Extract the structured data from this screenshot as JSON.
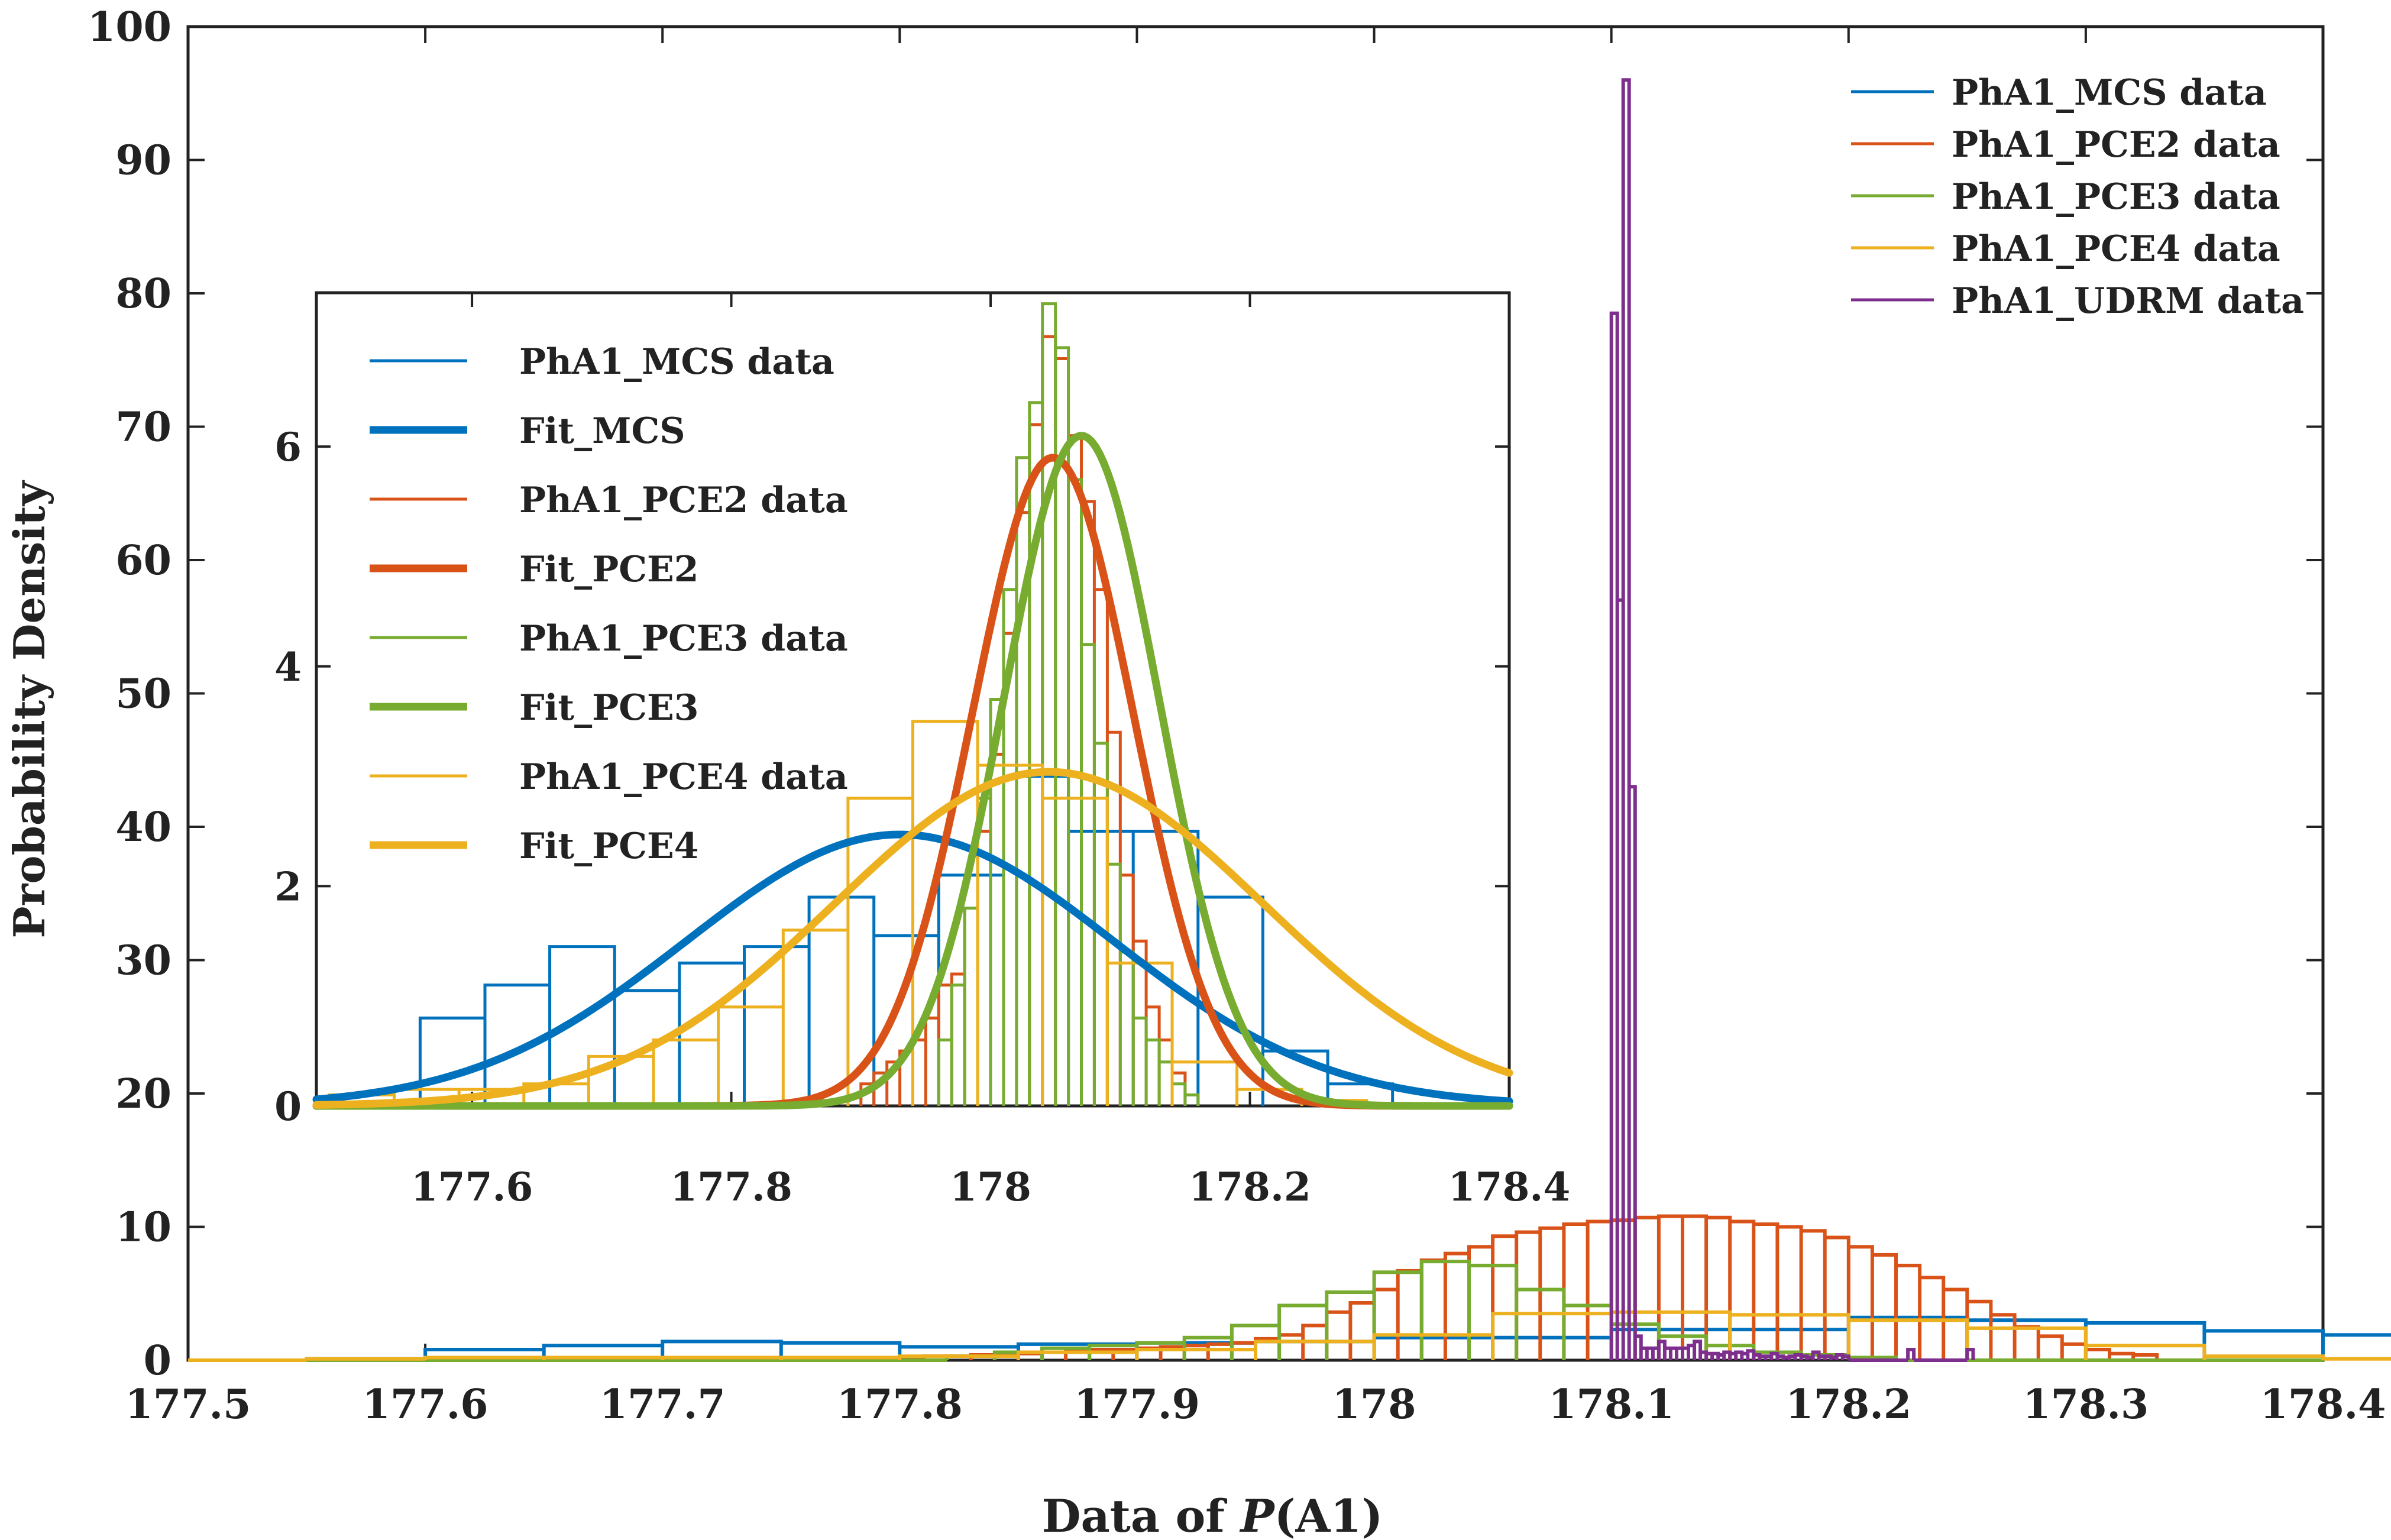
{
  "chart_data": [
    {
      "type": "histogram",
      "name": "main",
      "xlabel_prefix": "Data of ",
      "xlabel_symbol": "P",
      "xlabel_suffix": "(A1)",
      "ylabel": "Probability Density",
      "xlim": [
        177.5,
        178.4
      ],
      "ylim": [
        0,
        100
      ],
      "xticks": [
        177.5,
        177.6,
        177.7,
        177.8,
        177.9,
        178,
        178.1,
        178.2,
        178.3,
        178.4
      ],
      "xtick_labels": [
        "177.5",
        "177.6",
        "177.7",
        "177.8",
        "177.9",
        "178",
        "178.1",
        "178.2",
        "178.3",
        "178.4"
      ],
      "yticks": [
        0,
        10,
        20,
        30,
        40,
        50,
        60,
        70,
        80,
        90,
        100
      ],
      "ytick_labels": [
        "0",
        "10",
        "20",
        "30",
        "40",
        "50",
        "60",
        "70",
        "80",
        "90",
        "100"
      ],
      "legend_position": "top-right",
      "series": [
        {
          "name": "PhA1_MCS data",
          "color": "#0072BD",
          "edges_start": 177.5,
          "bin_width": 0.05,
          "values": [
            0.0,
            0.1,
            0.8,
            1.1,
            1.4,
            1.3,
            1.0,
            1.2,
            1.3,
            1.4,
            1.7,
            1.7,
            2.3,
            2.3,
            3.2,
            3.0,
            2.8,
            2.2,
            1.9,
            0.0
          ]
        },
        {
          "name": "PhA1_PCE2 data",
          "color": "#D95319",
          "edges_start": 177.5,
          "bin_width": 0.01,
          "values": [
            0.0,
            0.0,
            0.0,
            0.0,
            0.0,
            0.0,
            0.0,
            0.0,
            0.0,
            0.0,
            0.0,
            0.0,
            0.0,
            0.0,
            0.0,
            0.0,
            0.0,
            0.0,
            0.0,
            0.0,
            0.0,
            0.0,
            0.0,
            0.0,
            0.0,
            0.0,
            0.0,
            0.0,
            0.0,
            0.0,
            0.2,
            0.3,
            0.3,
            0.4,
            0.4,
            0.5,
            0.6,
            0.7,
            0.8,
            0.8,
            0.9,
            1.0,
            1.1,
            1.2,
            1.3,
            1.6,
            1.9,
            2.6,
            3.6,
            4.3,
            5.3,
            6.7,
            7.5,
            8.0,
            8.5,
            9.3,
            9.6,
            9.9,
            10.2,
            10.4,
            10.5,
            10.7,
            10.8,
            10.8,
            10.7,
            10.4,
            10.2,
            10.0,
            9.7,
            9.2,
            8.5,
            7.9,
            7.1,
            6.2,
            5.3,
            4.4,
            3.4,
            2.5,
            1.8,
            1.2,
            0.8,
            0.5,
            0.4,
            0.0,
            0.0,
            0.0,
            0.0,
            0.0,
            0.0,
            0.0
          ]
        },
        {
          "name": "PhA1_PCE3 data",
          "color": "#77AC30",
          "edges_start": 177.5,
          "bin_width": 0.02,
          "values": [
            0.0,
            0.0,
            0.0,
            0.0,
            0.0,
            0.0,
            0.0,
            0.0,
            0.0,
            0.0,
            0.0,
            0.0,
            0.0,
            0.0,
            0.0,
            0.0,
            0.3,
            0.6,
            0.9,
            1.1,
            1.3,
            1.7,
            2.6,
            4.1,
            5.1,
            6.6,
            7.4,
            7.1,
            5.3,
            4.1,
            2.7,
            1.8,
            1.1,
            0.6,
            0.4,
            0.2,
            0.0,
            0.0,
            0.0,
            0.0,
            0.0,
            0.0,
            0.0,
            0.0,
            0.0
          ]
        },
        {
          "name": "PhA1_PCE4 data",
          "color": "#EDB120",
          "edges_start": 177.5,
          "bin_width": 0.05,
          "values": [
            0.0,
            0.1,
            0.2,
            0.2,
            0.2,
            0.2,
            0.3,
            0.6,
            0.8,
            1.4,
            1.9,
            3.5,
            3.6,
            3.4,
            3.0,
            2.4,
            1.1,
            0.3,
            0.1,
            0.0
          ]
        },
        {
          "name": "PhA1_UDRM data",
          "color": "#7E2F8E",
          "edges_start": 178.1,
          "bin_width": 0.0025,
          "values": [
            78.5,
            57.0,
            96.0,
            43.0,
            1.8,
            0.9,
            0.9,
            0.9,
            1.4,
            0.9,
            0.9,
            0.9,
            0.9,
            1.1,
            1.4,
            0.6,
            0.5,
            0.5,
            0.4,
            0.6,
            0.5,
            0.6,
            0.5,
            0.7,
            0.4,
            0.3,
            0.3,
            0.5,
            0.3,
            0.2,
            0.3,
            0.4,
            0.3,
            0.2,
            0.6,
            0.3,
            0.3,
            0.2,
            0.4,
            0.3,
            0.0,
            0.0,
            0.0,
            0.0,
            0.0,
            0.0,
            0.0,
            0.0,
            0.0,
            0.0,
            0.8,
            0.0,
            0.0,
            0.0,
            0.0,
            0.0,
            0.0,
            0.0,
            0.0,
            0.0,
            0.8
          ]
        }
      ]
    },
    {
      "type": "histogram",
      "name": "inset",
      "xlim": [
        177.48,
        178.4
      ],
      "ylim": [
        0,
        7.4
      ],
      "xticks": [
        177.6,
        177.8,
        178,
        178.2,
        178.4
      ],
      "xtick_labels": [
        "177.6",
        "177.8",
        "178",
        "178.2",
        "178.4"
      ],
      "yticks": [
        0,
        2,
        4,
        6
      ],
      "ytick_labels": [
        "0",
        "2",
        "4",
        "6"
      ],
      "legend_position": "top-left",
      "series": [
        {
          "name": "PhA1_MCS data",
          "color": "#0072BD",
          "kind": "hist",
          "edges_start": 177.56,
          "bin_width": 0.05,
          "values": [
            0.8,
            1.1,
            1.45,
            1.05,
            1.3,
            1.45,
            1.9,
            1.55,
            2.1,
            3.0,
            2.5,
            2.5,
            1.9,
            0.5,
            0.2
          ]
        },
        {
          "name": "Fit_MCS",
          "color": "#0072BD",
          "kind": "fit",
          "mu": 177.93,
          "sigma": 0.165,
          "peak": 2.47
        },
        {
          "name": "PhA1_PCE2 data",
          "color": "#D95319",
          "kind": "hist",
          "edges_start": 177.9,
          "bin_width": 0.01,
          "values": [
            0.2,
            0.3,
            0.4,
            0.5,
            0.6,
            0.8,
            1.1,
            1.2,
            1.8,
            2.5,
            3.2,
            4.3,
            5.4,
            6.2,
            7.0,
            6.8,
            6.1,
            5.5,
            4.7,
            3.4,
            2.1,
            1.5,
            0.9,
            0.6,
            0.3
          ]
        },
        {
          "name": "Fit_PCE2",
          "color": "#D95319",
          "kind": "fit",
          "mu": 178.048,
          "sigma": 0.062,
          "peak": 5.9
        },
        {
          "name": "PhA1_PCE3 data",
          "color": "#77AC30",
          "kind": "hist",
          "edges_start": 177.96,
          "bin_width": 0.01,
          "values": [
            0.6,
            1.1,
            1.8,
            2.8,
            3.7,
            4.7,
            5.9,
            6.4,
            7.3,
            6.9,
            5.7,
            4.2,
            3.3,
            2.2,
            1.4,
            0.8,
            0.6,
            0.4,
            0.2,
            0.1
          ]
        },
        {
          "name": "Fit_PCE3",
          "color": "#77AC30",
          "kind": "fit",
          "mu": 178.07,
          "sigma": 0.06,
          "peak": 6.1
        },
        {
          "name": "PhA1_PCE4 data",
          "color": "#EDB120",
          "kind": "hist",
          "edges_start": 177.49,
          "bin_width": 0.05,
          "values": [
            0.1,
            0.15,
            0.15,
            0.2,
            0.45,
            0.6,
            0.9,
            1.6,
            2.8,
            3.5,
            3.1,
            2.8,
            1.3,
            0.4,
            0.15,
            0.05
          ]
        },
        {
          "name": "Fit_PCE4",
          "color": "#EDB120",
          "kind": "fit",
          "mu": 178.045,
          "sigma": 0.165,
          "peak": 3.04
        }
      ]
    }
  ]
}
